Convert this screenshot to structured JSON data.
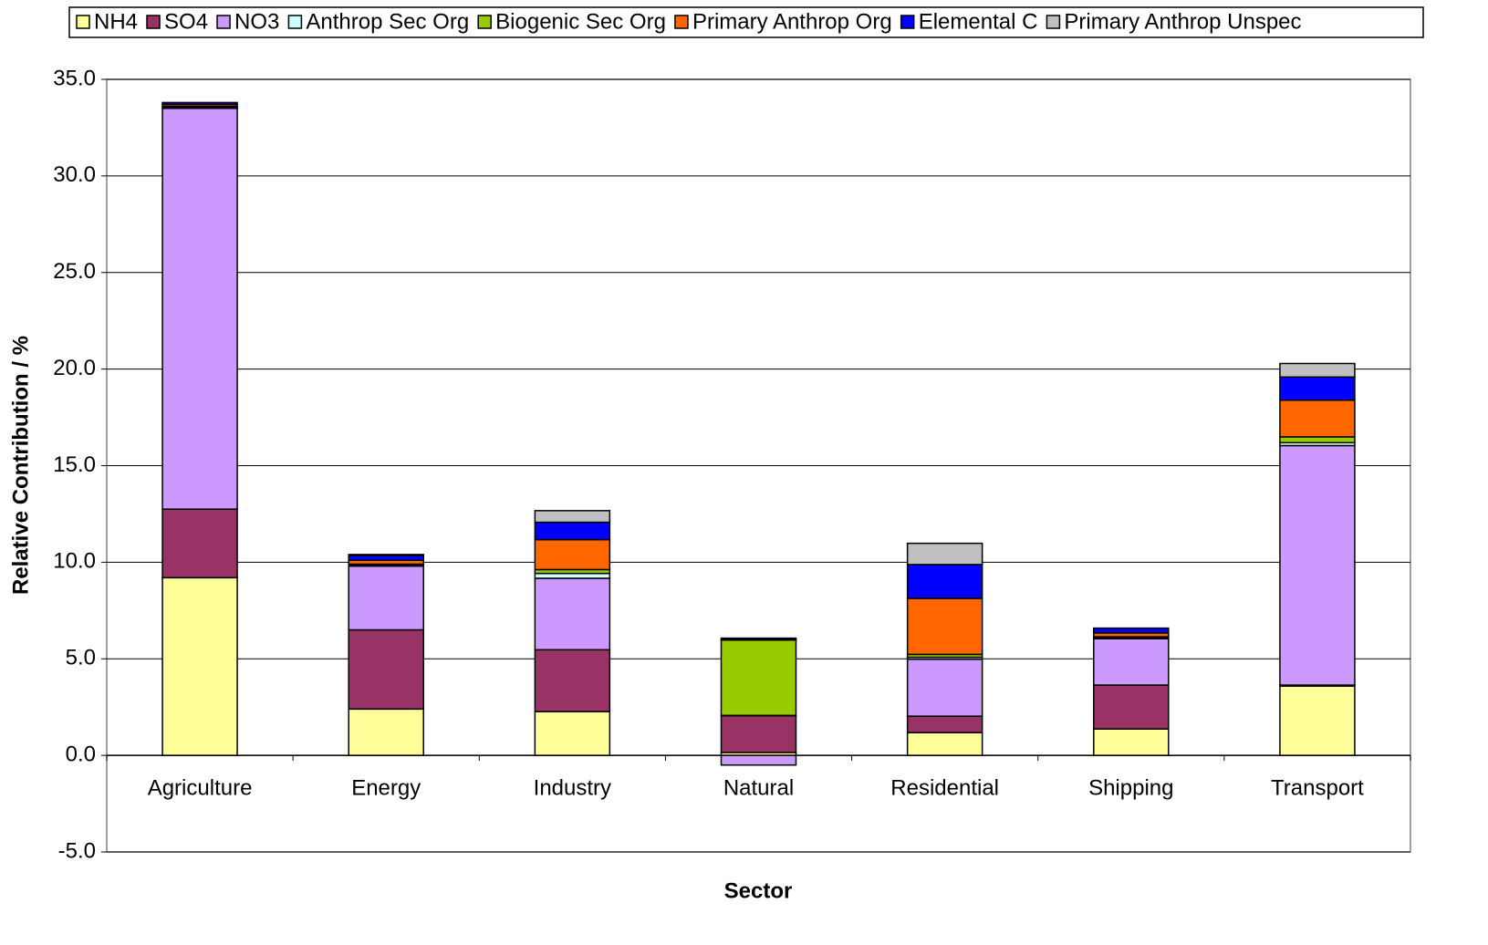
{
  "chart_data": {
    "type": "stacked-bar",
    "y_label": "Relative Contribution / %",
    "x_label": "Sector",
    "categories": [
      "Agriculture",
      "Energy",
      "Industry",
      "Natural",
      "Residential",
      "Shipping",
      "Transport"
    ],
    "series": [
      {
        "name": "NH4",
        "color": "#ffff99",
        "values": [
          9.2,
          2.4,
          2.27,
          0.15,
          1.18,
          1.37,
          3.59
        ]
      },
      {
        "name": "SO4",
        "color": "#993366",
        "values": [
          3.55,
          4.1,
          3.2,
          1.9,
          0.85,
          2.27,
          0.05
        ]
      },
      {
        "name": "NO3",
        "color": "#cc99ff",
        "values": [
          20.75,
          3.3,
          3.7,
          -0.5,
          2.95,
          2.4,
          12.4
        ]
      },
      {
        "name": "Anthrop Sec Org",
        "color": "#ccffff",
        "values": [
          0.05,
          0.05,
          0.25,
          0.02,
          0.1,
          0.05,
          0.15
        ]
      },
      {
        "name": "Biogenic Sec Org",
        "color": "#99cc00",
        "values": [
          0.05,
          0.05,
          0.2,
          3.9,
          0.15,
          0.05,
          0.3
        ]
      },
      {
        "name": "Primary Anthrop Org",
        "color": "#ff6600",
        "values": [
          0.1,
          0.2,
          1.55,
          0.05,
          2.9,
          0.2,
          1.9
        ]
      },
      {
        "name": "Elemental C",
        "color": "#0000ff",
        "values": [
          0.1,
          0.25,
          0.9,
          0.05,
          1.75,
          0.25,
          1.2
        ]
      },
      {
        "name": "Primary Anthrop Unspec",
        "color": "#c0c0c0",
        "values": [
          0,
          0.05,
          0.6,
          0,
          1.1,
          0,
          0.7
        ]
      }
    ],
    "ylim": [
      -5,
      35
    ],
    "yticks": [
      {
        "value": -5,
        "label": "-5.0"
      },
      {
        "value": 0,
        "label": "0.0"
      },
      {
        "value": 5,
        "label": "5.0"
      },
      {
        "value": 10,
        "label": "10.0"
      },
      {
        "value": 15,
        "label": "15.0"
      },
      {
        "value": 20,
        "label": "20.0"
      },
      {
        "value": 25,
        "label": "25.0"
      },
      {
        "value": 30,
        "label": "30.0"
      },
      {
        "value": 35,
        "label": "35.0"
      }
    ],
    "grid": true,
    "legend": "top"
  }
}
